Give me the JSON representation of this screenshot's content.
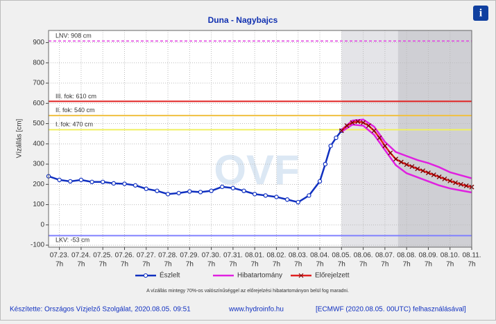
{
  "chart_data": {
    "type": "line",
    "title": "Duna - Nagybajcs",
    "y_label": "Vízállás [cm]",
    "watermark": "OVF",
    "xlim": [
      -0.5,
      19
    ],
    "ylim": [
      -110,
      960
    ],
    "yticks": [
      -100,
      0,
      100,
      200,
      300,
      400,
      500,
      600,
      700,
      800,
      900
    ],
    "xticks": [
      {
        "value": 0,
        "label": "07.23."
      },
      {
        "value": 1,
        "label": "07.24."
      },
      {
        "value": 2,
        "label": "07.25."
      },
      {
        "value": 3,
        "label": "07.26."
      },
      {
        "value": 4,
        "label": "07.27."
      },
      {
        "value": 5,
        "label": "07.28."
      },
      {
        "value": 6,
        "label": "07.29."
      },
      {
        "value": 7,
        "label": "07.30."
      },
      {
        "value": 8,
        "label": "07.31."
      },
      {
        "value": 9,
        "label": "08.01."
      },
      {
        "value": 10,
        "label": "08.02."
      },
      {
        "value": 11,
        "label": "08.03."
      },
      {
        "value": 12,
        "label": "08.04."
      },
      {
        "value": 13,
        "label": "08.05."
      },
      {
        "value": 14,
        "label": "08.06."
      },
      {
        "value": 15,
        "label": "08.07."
      },
      {
        "value": 16,
        "label": "08.08."
      },
      {
        "value": 17,
        "label": "08.09."
      },
      {
        "value": 18,
        "label": "08.10."
      },
      {
        "value": 19,
        "label": "08.11."
      }
    ],
    "xtick_hour": "7h",
    "grid": true,
    "shaded": [
      {
        "from": 13,
        "to": 15.6,
        "color": "#e4e4e8"
      },
      {
        "from": 15.6,
        "to": 19,
        "color": "#cfcfd4"
      }
    ],
    "thresholds": [
      {
        "label": "LNV: 908 cm",
        "value": 908,
        "color": "#e040e0",
        "dashed": true
      },
      {
        "label": "III. fok: 610 cm",
        "value": 610,
        "color": "#e02020",
        "dashed": false
      },
      {
        "label": "II. fok: 540 cm",
        "value": 540,
        "color": "#f0c040",
        "dashed": false
      },
      {
        "label": "I. fok: 470 cm",
        "value": 470,
        "color": "#f0f060",
        "dashed": false
      },
      {
        "label": "LKV: -53 cm",
        "value": -53,
        "color": "#8080ff",
        "dashed": false
      }
    ],
    "series": [
      {
        "name": "Észlelt",
        "color": "#1030c0",
        "marker": "circle",
        "x": [
          -0.5,
          0,
          0.5,
          1,
          1.5,
          2,
          2.5,
          3,
          3.5,
          4,
          4.5,
          5,
          5.5,
          6,
          6.5,
          7,
          7.5,
          8,
          8.5,
          9,
          9.5,
          10,
          10.5,
          11,
          11.5,
          12,
          12.25,
          12.5,
          12.75,
          13
        ],
        "values": [
          240,
          222,
          215,
          222,
          212,
          212,
          205,
          203,
          195,
          178,
          168,
          152,
          157,
          165,
          162,
          168,
          188,
          182,
          168,
          152,
          145,
          138,
          125,
          112,
          145,
          215,
          300,
          390,
          430,
          465
        ]
      },
      {
        "name": "Hibatartomány",
        "color": "#e020e0",
        "marker": "none",
        "x": [
          13,
          13.5,
          14,
          14.5,
          15,
          15.5,
          16,
          16.5,
          17,
          17.5,
          18,
          18.5,
          19
        ],
        "values": [
          470,
          515,
          520,
          485,
          410,
          360,
          340,
          320,
          305,
          285,
          260,
          245,
          230
        ],
        "lower": [
          460,
          495,
          490,
          445,
          370,
          295,
          255,
          235,
          215,
          195,
          180,
          170,
          160
        ]
      },
      {
        "name": "Előrejelzett",
        "color": "#e02020",
        "marker": "x",
        "x": [
          13,
          13.25,
          13.5,
          13.75,
          14,
          14.25,
          14.5,
          14.75,
          15,
          15.25,
          15.5,
          15.75,
          16,
          16.25,
          16.5,
          16.75,
          17,
          17.25,
          17.5,
          17.75,
          18,
          18.25,
          18.5,
          18.75,
          19
        ],
        "values": [
          465,
          490,
          505,
          510,
          505,
          490,
          465,
          430,
          390,
          355,
          325,
          310,
          298,
          288,
          277,
          267,
          257,
          247,
          237,
          227,
          217,
          208,
          200,
          193,
          187
        ]
      }
    ],
    "note": "A vízállás mintegy 70%-os valószínűséggel az előrejelzési hibatartományon belül fog maradni.",
    "footer": {
      "author": "Készítette: Országos Vízjelző Szolgálat, 2020.08.05. 09:51",
      "site": "www.hydroinfo.hu",
      "source": "[ECMWF (2020.08.05. 00UTC) felhasználásával]"
    },
    "info_icon": "i"
  }
}
